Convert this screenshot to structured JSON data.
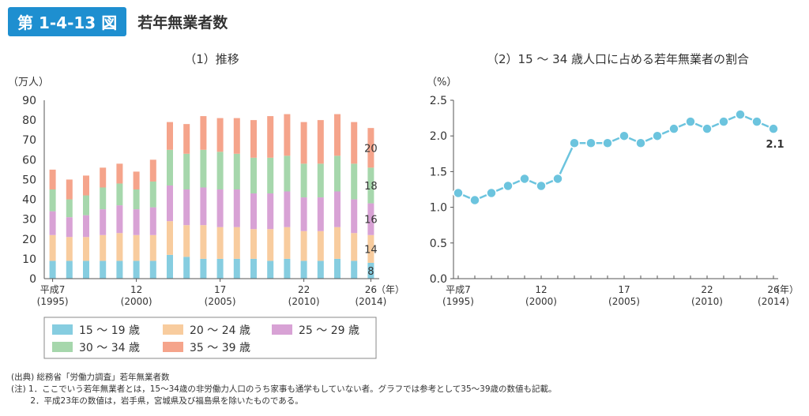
{
  "header": {
    "figure_number": "第 1-4-13 図",
    "title": "若年無業者数"
  },
  "chart_data": [
    {
      "type": "bar",
      "stacked": true,
      "title": "（1）推移",
      "ylabel": "（万人）",
      "ylim": [
        0,
        90
      ],
      "yticks": [
        0,
        10,
        20,
        30,
        40,
        50,
        60,
        70,
        80,
        90
      ],
      "x_tick_labels": [
        {
          "index": 0,
          "line1": "平成7",
          "line2": "(1995)"
        },
        {
          "index": 5,
          "line1": "12",
          "line2": "(2000)"
        },
        {
          "index": 10,
          "line1": "17",
          "line2": "(2005)"
        },
        {
          "index": 15,
          "line1": "22",
          "line2": "(2010)"
        },
        {
          "index": 19,
          "line1": "26",
          "line2": "(2014)"
        }
      ],
      "x_unit": "（年）",
      "categories": [
        "1995",
        "1996",
        "1997",
        "1998",
        "1999",
        "2000",
        "2001",
        "2002",
        "2003",
        "2004",
        "2005",
        "2006",
        "2007",
        "2008",
        "2009",
        "2010",
        "2011",
        "2012",
        "2013",
        "2014"
      ],
      "series": [
        {
          "name": "15 ～ 19 歳",
          "color": "#86cde0",
          "values": [
            9,
            9,
            9,
            9,
            9,
            9,
            9,
            12,
            11,
            10,
            10,
            10,
            10,
            9,
            10,
            9,
            9,
            10,
            9,
            8
          ]
        },
        {
          "name": "20 ～ 24 歳",
          "color": "#f8cc9e",
          "values": [
            13,
            12,
            12,
            13,
            14,
            13,
            13,
            17,
            16,
            17,
            16,
            16,
            15,
            16,
            16,
            15,
            15,
            16,
            14,
            14
          ]
        },
        {
          "name": "25 ～ 29 歳",
          "color": "#d8a2d5",
          "values": [
            12,
            10,
            11,
            13,
            14,
            13,
            14,
            18,
            18,
            19,
            19,
            19,
            18,
            18,
            18,
            17,
            17,
            18,
            17,
            16
          ]
        },
        {
          "name": "30 ～ 34 歳",
          "color": "#a6d7ac",
          "values": [
            11,
            9,
            10,
            11,
            11,
            10,
            13,
            18,
            18,
            19,
            19,
            18,
            18,
            18,
            18,
            17,
            17,
            18,
            18,
            18
          ]
        },
        {
          "name": "35 ～ 39 歳",
          "color": "#f5a48b",
          "values": [
            10,
            10,
            10,
            10,
            10,
            9,
            11,
            14,
            15,
            17,
            17,
            18,
            19,
            21,
            21,
            21,
            22,
            21,
            21,
            20
          ]
        }
      ],
      "data_labels_last_bar": [
        "8",
        "14",
        "16",
        "18",
        "20"
      ]
    },
    {
      "type": "line",
      "title": "（2）15 ～ 34 歳人口に占める若年無業者の割合",
      "ylabel": "（%）",
      "ylim": [
        0,
        2.5
      ],
      "yticks": [
        "0.0",
        "0.5",
        "1.0",
        "1.5",
        "2.0",
        "2.5"
      ],
      "x_tick_labels": [
        {
          "index": 0,
          "line1": "平成7",
          "line2": "(1995)"
        },
        {
          "index": 5,
          "line1": "12",
          "line2": "(2000)"
        },
        {
          "index": 10,
          "line1": "17",
          "line2": "(2005)"
        },
        {
          "index": 15,
          "line1": "22",
          "line2": "(2010)"
        },
        {
          "index": 19,
          "line1": "26",
          "line2": "(2014)"
        }
      ],
      "x_unit": "（年）",
      "x": [
        "1995",
        "1996",
        "1997",
        "1998",
        "1999",
        "2000",
        "2001",
        "2002",
        "2003",
        "2004",
        "2005",
        "2006",
        "2007",
        "2008",
        "2009",
        "2010",
        "2011",
        "2012",
        "2013",
        "2014"
      ],
      "values": [
        1.2,
        1.1,
        1.2,
        1.3,
        1.4,
        1.3,
        1.4,
        1.9,
        1.9,
        1.9,
        2.0,
        1.9,
        2.0,
        2.1,
        2.2,
        2.1,
        2.2,
        2.3,
        2.2,
        2.1
      ],
      "color": "#6cc4de",
      "end_label": "2.1"
    }
  ],
  "notes": [
    "(出典) 総務省「労働力調査」若年無業者数",
    "(注) 1．ここでいう若年無業者とは，15～34歳の非労働力人口のうち家事も通学もしていない者。グラフでは参考として35～39歳の数値も記載。",
    "　　 2．平成23年の数値は，岩手県，宮城県及び福島県を除いたものである。"
  ]
}
